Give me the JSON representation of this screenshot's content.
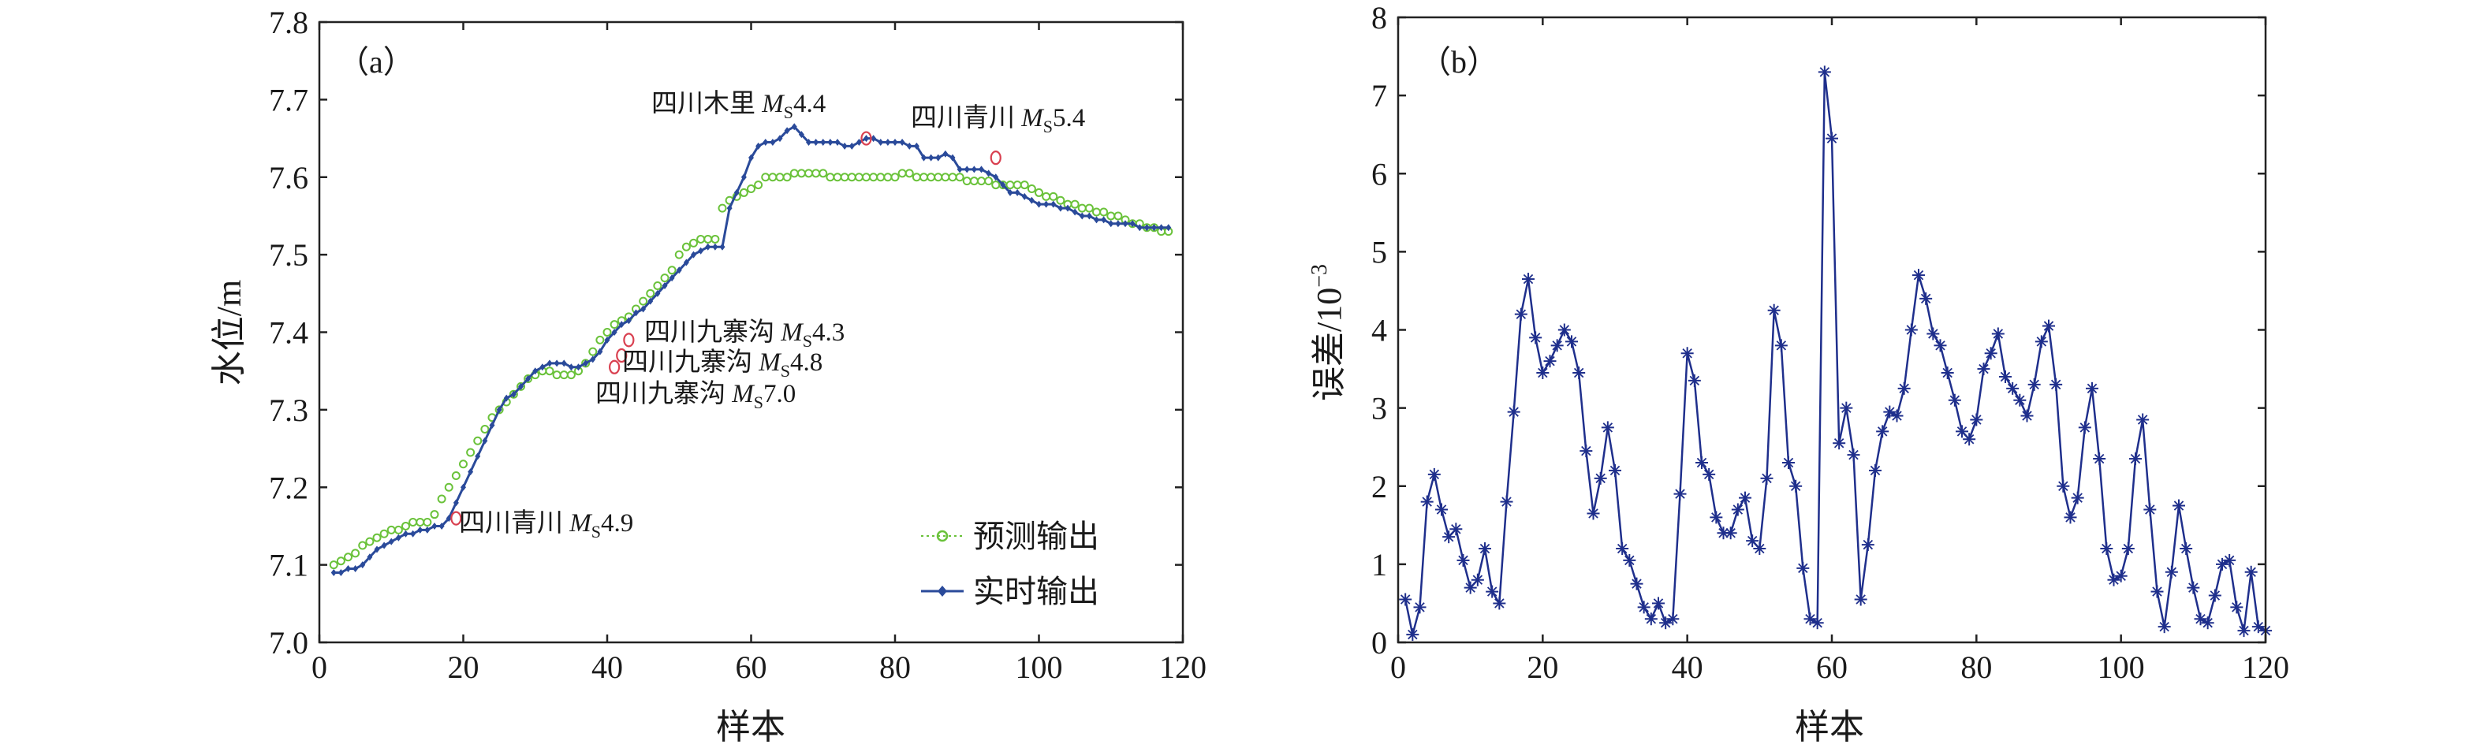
{
  "chart_data": [
    {
      "type": "line",
      "panel_label": "（a）",
      "xlabel": "样本",
      "ylabel": "水位/m",
      "xlim": [
        0,
        120
      ],
      "ylim": [
        7.0,
        7.8
      ],
      "xticks": [
        "0",
        "20",
        "40",
        "60",
        "80",
        "100",
        "120"
      ],
      "yticks": [
        "7.0",
        "7.1",
        "7.2",
        "7.3",
        "7.4",
        "7.5",
        "7.6",
        "7.7",
        "7.8"
      ],
      "legend_position": "bottom-right",
      "colors": {
        "predicted": "#6ac23a",
        "actual": "#2a4a9a",
        "event_marker": "#d94050"
      },
      "series": [
        {
          "name": "预测输出",
          "key": "predicted",
          "marker": "circle",
          "values": [
            7.1,
            7.105,
            7.11,
            7.115,
            7.125,
            7.13,
            7.135,
            7.14,
            7.145,
            7.145,
            7.15,
            7.155,
            7.155,
            7.155,
            7.165,
            7.185,
            7.2,
            7.215,
            7.23,
            7.245,
            7.26,
            7.275,
            7.29,
            7.3,
            7.31,
            7.32,
            7.33,
            7.34,
            7.345,
            7.35,
            7.35,
            7.345,
            7.345,
            7.345,
            7.35,
            7.36,
            7.375,
            7.39,
            7.4,
            7.41,
            7.415,
            7.42,
            7.43,
            7.44,
            7.45,
            7.46,
            7.47,
            7.48,
            7.5,
            7.51,
            7.515,
            7.52,
            7.52,
            7.52,
            7.56,
            7.57,
            7.575,
            7.58,
            7.585,
            7.59,
            7.6,
            7.6,
            7.6,
            7.6,
            7.605,
            7.605,
            7.605,
            7.605,
            7.605,
            7.6,
            7.6,
            7.6,
            7.6,
            7.6,
            7.6,
            7.6,
            7.6,
            7.6,
            7.6,
            7.605,
            7.605,
            7.6,
            7.6,
            7.6,
            7.6,
            7.6,
            7.6,
            7.6,
            7.595,
            7.595,
            7.595,
            7.595,
            7.59,
            7.59,
            7.59,
            7.59,
            7.59,
            7.585,
            7.58,
            7.575,
            7.575,
            7.57,
            7.565,
            7.565,
            7.56,
            7.56,
            7.555,
            7.555,
            7.55,
            7.55,
            7.545,
            7.54,
            7.54,
            7.535,
            7.535,
            7.53,
            7.53
          ]
        },
        {
          "name": "实时输出",
          "key": "actual",
          "marker": "diamond",
          "values": [
            7.09,
            7.09,
            7.095,
            7.095,
            7.1,
            7.11,
            7.12,
            7.125,
            7.13,
            7.135,
            7.14,
            7.14,
            7.145,
            7.145,
            7.15,
            7.15,
            7.16,
            7.18,
            7.2,
            7.22,
            7.24,
            7.26,
            7.28,
            7.3,
            7.315,
            7.32,
            7.33,
            7.34,
            7.35,
            7.355,
            7.36,
            7.36,
            7.36,
            7.355,
            7.355,
            7.36,
            7.365,
            7.375,
            7.39,
            7.4,
            7.41,
            7.415,
            7.425,
            7.43,
            7.44,
            7.45,
            7.46,
            7.47,
            7.48,
            7.49,
            7.5,
            7.505,
            7.51,
            7.51,
            7.51,
            7.56,
            7.58,
            7.6,
            7.625,
            7.64,
            7.645,
            7.645,
            7.65,
            7.66,
            7.665,
            7.655,
            7.645,
            7.645,
            7.645,
            7.645,
            7.645,
            7.64,
            7.64,
            7.645,
            7.65,
            7.65,
            7.645,
            7.645,
            7.645,
            7.645,
            7.64,
            7.64,
            7.625,
            7.625,
            7.625,
            7.63,
            7.625,
            7.61,
            7.61,
            7.61,
            7.61,
            7.605,
            7.6,
            7.59,
            7.58,
            7.58,
            7.575,
            7.57,
            7.565,
            7.565,
            7.565,
            7.56,
            7.56,
            7.555,
            7.55,
            7.55,
            7.545,
            7.545,
            7.54,
            7.54,
            7.54,
            7.54,
            7.535,
            7.535,
            7.535,
            7.535,
            7.535
          ]
        }
      ],
      "annotations": [
        {
          "text_prefix": "四川青川 ",
          "m_letter": "M",
          "sub": "S",
          "magnitude": "4.9",
          "x": 19,
          "y": 7.16
        },
        {
          "text_prefix": "四川九寨沟 ",
          "m_letter": "M",
          "sub": "S",
          "magnitude": "4.3",
          "x": 43,
          "y": 7.39
        },
        {
          "text_prefix": "四川九寨沟 ",
          "m_letter": "M",
          "sub": "S",
          "magnitude": "4.8",
          "x": 42,
          "y": 7.37
        },
        {
          "text_prefix": "四川九寨沟 ",
          "m_letter": "M",
          "sub": "S",
          "magnitude": "7.0",
          "x": 41,
          "y": 7.355
        },
        {
          "text_prefix": "四川木里 ",
          "m_letter": "M",
          "sub": "S",
          "magnitude": "4.4",
          "x": 76,
          "y": 7.65
        },
        {
          "text_prefix": "四川青川 ",
          "m_letter": "M",
          "sub": "S",
          "magnitude": "5.4",
          "x": 94,
          "y": 7.625
        }
      ]
    },
    {
      "type": "line",
      "panel_label": "（b）",
      "xlabel": "样本",
      "ylabel_base": "误差/10",
      "ylabel_exp": "−3",
      "xlim": [
        0,
        120
      ],
      "ylim": [
        0,
        8
      ],
      "xticks": [
        "0",
        "20",
        "40",
        "60",
        "80",
        "100",
        "120"
      ],
      "yticks": [
        "0",
        "1",
        "2",
        "3",
        "4",
        "5",
        "6",
        "7",
        "8"
      ],
      "colors": {
        "line": "#1f2f8c",
        "marker": "#1f2f8c"
      },
      "series": [
        {
          "key": "error",
          "marker": "star",
          "x_start": 1,
          "values": [
            0.55,
            0.1,
            0.45,
            1.8,
            2.15,
            1.7,
            1.35,
            1.45,
            1.05,
            0.7,
            0.8,
            1.2,
            0.65,
            0.5,
            1.8,
            2.95,
            4.2,
            4.65,
            3.9,
            3.45,
            3.6,
            3.8,
            4.0,
            3.85,
            3.45,
            2.45,
            1.65,
            2.1,
            2.75,
            2.2,
            1.2,
            1.05,
            0.75,
            0.45,
            0.3,
            0.5,
            0.25,
            0.3,
            1.9,
            3.7,
            3.35,
            2.3,
            2.15,
            1.6,
            1.4,
            1.4,
            1.7,
            1.85,
            1.3,
            1.2,
            2.1,
            4.25,
            3.8,
            2.3,
            2.0,
            0.95,
            0.3,
            0.25,
            7.3,
            6.45,
            2.55,
            3.0,
            2.4,
            0.55,
            1.25,
            2.2,
            2.7,
            2.95,
            2.9,
            3.25,
            4.0,
            4.7,
            4.4,
            3.95,
            3.8,
            3.45,
            3.1,
            2.7,
            2.6,
            2.85,
            3.5,
            3.7,
            3.95,
            3.4,
            3.25,
            3.1,
            2.9,
            3.3,
            3.85,
            4.05,
            3.3,
            2.0,
            1.6,
            1.85,
            2.75,
            3.25,
            2.35,
            1.2,
            0.8,
            0.85,
            1.2,
            2.35,
            2.85,
            1.7,
            0.65,
            0.2,
            0.9,
            1.75,
            1.2,
            0.7,
            0.3,
            0.25,
            0.6,
            1.0,
            1.05,
            0.45,
            0.15,
            0.9,
            0.2,
            0.15
          ]
        }
      ]
    }
  ]
}
